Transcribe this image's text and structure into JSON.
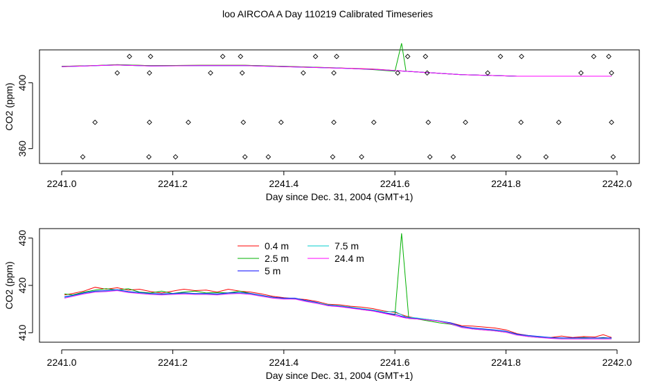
{
  "title": "loo AIRCOA A  Day 110219  Calibrated Timeseries",
  "colors": {
    "0.4 m": "#ff0000",
    "2.5 m": "#00b000",
    "5 m": "#0000ff",
    "7.5 m": "#00cccc",
    "24.4 m": "#ff00ff"
  },
  "chart_data": [
    {
      "type": "line",
      "xlabel": "Day since Dec. 31, 2004 (GMT+1)",
      "ylabel": "CO2 (ppm)",
      "xlim": [
        2240.96,
        2242.04
      ],
      "ylim": [
        351,
        420
      ],
      "xticks": [
        "2241.0",
        "2241.2",
        "2241.4",
        "2241.6",
        "2241.8",
        "2242.0"
      ],
      "xtick_values": [
        2241.0,
        2241.2,
        2241.4,
        2241.6,
        2241.8,
        2242.0
      ],
      "yticks": [
        "360",
        "400"
      ],
      "ytick_values": [
        360,
        400
      ],
      "legend": null,
      "series": [
        {
          "name": "0.4 m",
          "x": [
            2241.0,
            2241.06,
            2241.1,
            2241.16,
            2241.25,
            2241.33,
            2241.4,
            2241.5,
            2241.56,
            2241.62,
            2241.72,
            2241.82,
            2241.9,
            2241.99
          ],
          "y": [
            410.0,
            410.5,
            411.0,
            410.4,
            410.6,
            410.6,
            410.0,
            409.0,
            408.4,
            407.0,
            405.0,
            404.0,
            404.0,
            404.0
          ]
        },
        {
          "name": "2.5 m",
          "x": [
            2241.0,
            2241.06,
            2241.1,
            2241.16,
            2241.25,
            2241.33,
            2241.4,
            2241.5,
            2241.56,
            2241.6,
            2241.612,
            2241.62,
            2241.72,
            2241.82,
            2241.9,
            2241.99
          ],
          "y": [
            410.0,
            410.5,
            411.0,
            410.4,
            410.6,
            410.6,
            410.0,
            409.0,
            408.0,
            407.0,
            424.0,
            407.0,
            405.0,
            404.0,
            404.0,
            404.0
          ]
        },
        {
          "name": "5 m",
          "x": [
            2241.0,
            2241.06,
            2241.1,
            2241.16,
            2241.25,
            2241.33,
            2241.4,
            2241.5,
            2241.56,
            2241.62,
            2241.72,
            2241.82,
            2241.9,
            2241.99
          ],
          "y": [
            409.8,
            410.4,
            410.8,
            410.2,
            410.4,
            410.4,
            409.8,
            408.9,
            408.2,
            407.0,
            405.0,
            404.0,
            404.0,
            404.0
          ]
        },
        {
          "name": "7.5 m",
          "x": [
            2241.0,
            2241.06,
            2241.1,
            2241.16,
            2241.25,
            2241.33,
            2241.4,
            2241.5,
            2241.56,
            2241.62,
            2241.72,
            2241.82,
            2241.9,
            2241.99
          ],
          "y": [
            409.8,
            410.4,
            410.8,
            410.2,
            410.4,
            410.4,
            409.8,
            408.9,
            408.2,
            407.0,
            405.0,
            404.0,
            404.0,
            404.0
          ]
        },
        {
          "name": "24.4 m",
          "x": [
            2241.0,
            2241.06,
            2241.1,
            2241.16,
            2241.25,
            2241.33,
            2241.4,
            2241.5,
            2241.56,
            2241.62,
            2241.72,
            2241.82,
            2241.9,
            2241.99
          ],
          "y": [
            409.8,
            410.4,
            410.8,
            410.2,
            410.4,
            410.4,
            409.8,
            408.9,
            408.2,
            407.0,
            405.0,
            404.0,
            404.0,
            404.0
          ]
        }
      ],
      "markers": {
        "type": "scatter",
        "symbol": "open-diamond",
        "points": [
          [
            2241.038,
            355
          ],
          [
            2241.06,
            376
          ],
          [
            2241.1,
            406
          ],
          [
            2241.122,
            416
          ],
          [
            2241.157,
            355
          ],
          [
            2241.158,
            376
          ],
          [
            2241.158,
            406
          ],
          [
            2241.16,
            416
          ],
          [
            2241.205,
            355
          ],
          [
            2241.228,
            376
          ],
          [
            2241.268,
            406
          ],
          [
            2241.29,
            416
          ],
          [
            2241.322,
            416
          ],
          [
            2241.325,
            406
          ],
          [
            2241.327,
            376
          ],
          [
            2241.33,
            355
          ],
          [
            2241.372,
            355
          ],
          [
            2241.395,
            376
          ],
          [
            2241.435,
            406
          ],
          [
            2241.457,
            416
          ],
          [
            2241.488,
            355
          ],
          [
            2241.49,
            376
          ],
          [
            2241.49,
            406
          ],
          [
            2241.495,
            416
          ],
          [
            2241.54,
            355
          ],
          [
            2241.562,
            376
          ],
          [
            2241.605,
            406
          ],
          [
            2241.623,
            416
          ],
          [
            2241.655,
            416
          ],
          [
            2241.658,
            406
          ],
          [
            2241.66,
            376
          ],
          [
            2241.663,
            355
          ],
          [
            2241.705,
            355
          ],
          [
            2241.727,
            376
          ],
          [
            2241.767,
            406
          ],
          [
            2241.79,
            416
          ],
          [
            2241.823,
            355
          ],
          [
            2241.827,
            376
          ],
          [
            2241.828,
            416
          ],
          [
            2241.872,
            355
          ],
          [
            2241.895,
            376
          ],
          [
            2241.935,
            406
          ],
          [
            2241.958,
            416
          ],
          [
            2241.985,
            416
          ],
          [
            2241.99,
            406
          ],
          [
            2241.99,
            376
          ],
          [
            2241.993,
            355
          ]
        ]
      }
    },
    {
      "type": "line",
      "xlabel": "Day since Dec. 31, 2004 (GMT+1)",
      "ylabel": "CO2 (ppm)",
      "xlim": [
        2240.96,
        2242.04
      ],
      "ylim": [
        408,
        432
      ],
      "xticks": [
        "2241.0",
        "2241.2",
        "2241.4",
        "2241.6",
        "2241.8",
        "2242.0"
      ],
      "xtick_values": [
        2241.0,
        2241.2,
        2241.4,
        2241.6,
        2241.8,
        2242.0
      ],
      "yticks": [
        "410",
        "420",
        "430"
      ],
      "ytick_values": [
        410,
        420,
        430
      ],
      "legend": {
        "placement": "top-center",
        "columns": 2
      },
      "series": [
        {
          "name": "0.4 m",
          "x": [
            2241.005,
            2241.02,
            2241.04,
            2241.06,
            2241.08,
            2241.1,
            2241.12,
            2241.14,
            2241.16,
            2241.18,
            2241.2,
            2241.22,
            2241.24,
            2241.26,
            2241.28,
            2241.3,
            2241.32,
            2241.34,
            2241.36,
            2241.38,
            2241.4,
            2241.42,
            2241.44,
            2241.46,
            2241.48,
            2241.5,
            2241.52,
            2241.54,
            2241.56,
            2241.58,
            2241.6,
            2241.62,
            2241.64,
            2241.66,
            2241.68,
            2241.7,
            2241.72,
            2241.74,
            2241.76,
            2241.78,
            2241.8,
            2241.82,
            2241.84,
            2241.86,
            2241.88,
            2241.9,
            2241.92,
            2241.94,
            2241.96,
            2241.975,
            2241.99
          ],
          "y": [
            418.0,
            418.3,
            418.8,
            419.6,
            419.2,
            419.5,
            419.0,
            419.2,
            418.7,
            418.4,
            418.8,
            419.2,
            418.9,
            419.0,
            418.6,
            419.2,
            418.8,
            418.6,
            418.2,
            417.7,
            417.4,
            417.2,
            417.0,
            416.6,
            416.0,
            415.9,
            415.6,
            415.4,
            415.1,
            414.6,
            414.3,
            413.5,
            413.0,
            412.7,
            412.4,
            412.1,
            411.5,
            411.4,
            411.2,
            411.0,
            410.6,
            409.8,
            409.4,
            409.1,
            409.0,
            409.3,
            409.0,
            409.2,
            409.1,
            409.6,
            409.0
          ]
        },
        {
          "name": "2.5 m",
          "x": [
            2241.005,
            2241.02,
            2241.04,
            2241.06,
            2241.08,
            2241.1,
            2241.12,
            2241.14,
            2241.16,
            2241.18,
            2241.2,
            2241.22,
            2241.24,
            2241.26,
            2241.28,
            2241.3,
            2241.32,
            2241.34,
            2241.36,
            2241.38,
            2241.4,
            2241.42,
            2241.44,
            2241.46,
            2241.48,
            2241.5,
            2241.52,
            2241.54,
            2241.56,
            2241.58,
            2241.6,
            2241.612,
            2241.625,
            2241.64,
            2241.66,
            2241.68,
            2241.7,
            2241.72,
            2241.74,
            2241.76,
            2241.78,
            2241.8,
            2241.82,
            2241.84,
            2241.86,
            2241.88,
            2241.9,
            2241.92,
            2241.94,
            2241.96,
            2241.975,
            2241.99
          ],
          "y": [
            418.2,
            418.0,
            418.6,
            419.0,
            419.3,
            419.0,
            419.3,
            418.6,
            418.4,
            418.8,
            418.3,
            418.6,
            418.8,
            418.4,
            418.5,
            418.4,
            418.8,
            418.3,
            417.9,
            417.5,
            417.2,
            417.1,
            416.8,
            416.3,
            415.7,
            415.6,
            415.4,
            414.9,
            414.6,
            414.2,
            413.8,
            431.0,
            413.0,
            412.9,
            412.5,
            412.1,
            411.8,
            411.2,
            410.8,
            410.6,
            410.4,
            410.1,
            409.6,
            409.2,
            409.0,
            408.9,
            408.9,
            408.8,
            409.0,
            408.8,
            409.0,
            408.8
          ]
        },
        {
          "name": "5 m",
          "x": [
            2241.005,
            2241.02,
            2241.04,
            2241.06,
            2241.08,
            2241.1,
            2241.12,
            2241.14,
            2241.16,
            2241.18,
            2241.2,
            2241.22,
            2241.24,
            2241.26,
            2241.28,
            2241.3,
            2241.32,
            2241.34,
            2241.36,
            2241.38,
            2241.4,
            2241.42,
            2241.44,
            2241.46,
            2241.48,
            2241.5,
            2241.52,
            2241.54,
            2241.56,
            2241.58,
            2241.6,
            2241.62,
            2241.64,
            2241.66,
            2241.68,
            2241.7,
            2241.72,
            2241.74,
            2241.76,
            2241.78,
            2241.8,
            2241.82,
            2241.84,
            2241.86,
            2241.88,
            2241.9,
            2241.92,
            2241.94,
            2241.96,
            2241.975,
            2241.99
          ],
          "y": [
            417.6,
            417.9,
            418.4,
            418.8,
            418.9,
            419.1,
            418.7,
            418.5,
            418.3,
            418.2,
            418.3,
            418.4,
            418.3,
            418.3,
            418.2,
            418.4,
            418.5,
            418.3,
            417.9,
            417.5,
            417.3,
            417.3,
            416.8,
            416.4,
            415.8,
            415.6,
            415.3,
            415.0,
            414.7,
            414.2,
            413.9,
            413.2,
            413.0,
            412.8,
            412.5,
            412.1,
            411.3,
            411.0,
            410.8,
            410.6,
            410.3,
            409.7,
            409.4,
            409.2,
            409.0,
            408.9,
            408.9,
            408.9,
            408.9,
            408.9,
            408.9
          ]
        },
        {
          "name": "7.5 m",
          "x": [
            2241.005,
            2241.02,
            2241.04,
            2241.06,
            2241.08,
            2241.1,
            2241.12,
            2241.14,
            2241.16,
            2241.18,
            2241.2,
            2241.22,
            2241.24,
            2241.26,
            2241.28,
            2241.3,
            2241.32,
            2241.34,
            2241.36,
            2241.38,
            2241.4,
            2241.42,
            2241.44,
            2241.46,
            2241.48,
            2241.5,
            2241.52,
            2241.54,
            2241.56,
            2241.58,
            2241.6,
            2241.62,
            2241.64,
            2241.66,
            2241.68,
            2241.7,
            2241.72,
            2241.74,
            2241.76,
            2241.78,
            2241.8,
            2241.82,
            2241.84,
            2241.86,
            2241.88,
            2241.9,
            2241.92,
            2241.94,
            2241.96,
            2241.975,
            2241.99
          ],
          "y": [
            417.5,
            417.8,
            418.3,
            418.7,
            418.8,
            419.0,
            418.6,
            418.4,
            418.2,
            418.1,
            418.2,
            418.3,
            418.2,
            418.2,
            418.1,
            418.3,
            418.4,
            418.2,
            417.8,
            417.4,
            417.2,
            417.2,
            416.7,
            416.3,
            415.9,
            415.7,
            415.4,
            415.1,
            414.8,
            414.4,
            414.5,
            413.3,
            413.1,
            412.8,
            412.5,
            412.0,
            411.2,
            410.9,
            410.7,
            410.5,
            410.2,
            409.6,
            409.3,
            409.1,
            408.9,
            408.8,
            408.8,
            408.8,
            408.8,
            408.8,
            408.8
          ]
        },
        {
          "name": "24.4 m",
          "x": [
            2241.005,
            2241.02,
            2241.04,
            2241.06,
            2241.08,
            2241.1,
            2241.12,
            2241.14,
            2241.16,
            2241.18,
            2241.2,
            2241.22,
            2241.24,
            2241.26,
            2241.28,
            2241.3,
            2241.32,
            2241.34,
            2241.36,
            2241.38,
            2241.4,
            2241.42,
            2241.44,
            2241.46,
            2241.48,
            2241.5,
            2241.52,
            2241.54,
            2241.56,
            2241.58,
            2241.6,
            2241.62,
            2241.64,
            2241.66,
            2241.68,
            2241.7,
            2241.72,
            2241.74,
            2241.76,
            2241.78,
            2241.8,
            2241.82,
            2241.84,
            2241.86,
            2241.88,
            2241.9,
            2241.92,
            2241.94,
            2241.96,
            2241.975,
            2241.99
          ],
          "y": [
            417.3,
            417.7,
            418.2,
            418.6,
            418.7,
            418.9,
            418.5,
            418.3,
            418.1,
            418.0,
            418.1,
            418.2,
            418.1,
            418.1,
            418.0,
            418.2,
            418.3,
            418.1,
            417.7,
            417.3,
            417.1,
            417.1,
            416.6,
            416.2,
            415.7,
            415.5,
            415.2,
            414.9,
            414.6,
            414.1,
            413.6,
            413.1,
            412.9,
            412.7,
            412.4,
            411.9,
            411.1,
            410.8,
            410.6,
            410.4,
            410.1,
            409.5,
            409.2,
            409.0,
            408.8,
            408.7,
            408.7,
            408.7,
            408.7,
            408.7,
            408.7
          ]
        }
      ]
    }
  ]
}
